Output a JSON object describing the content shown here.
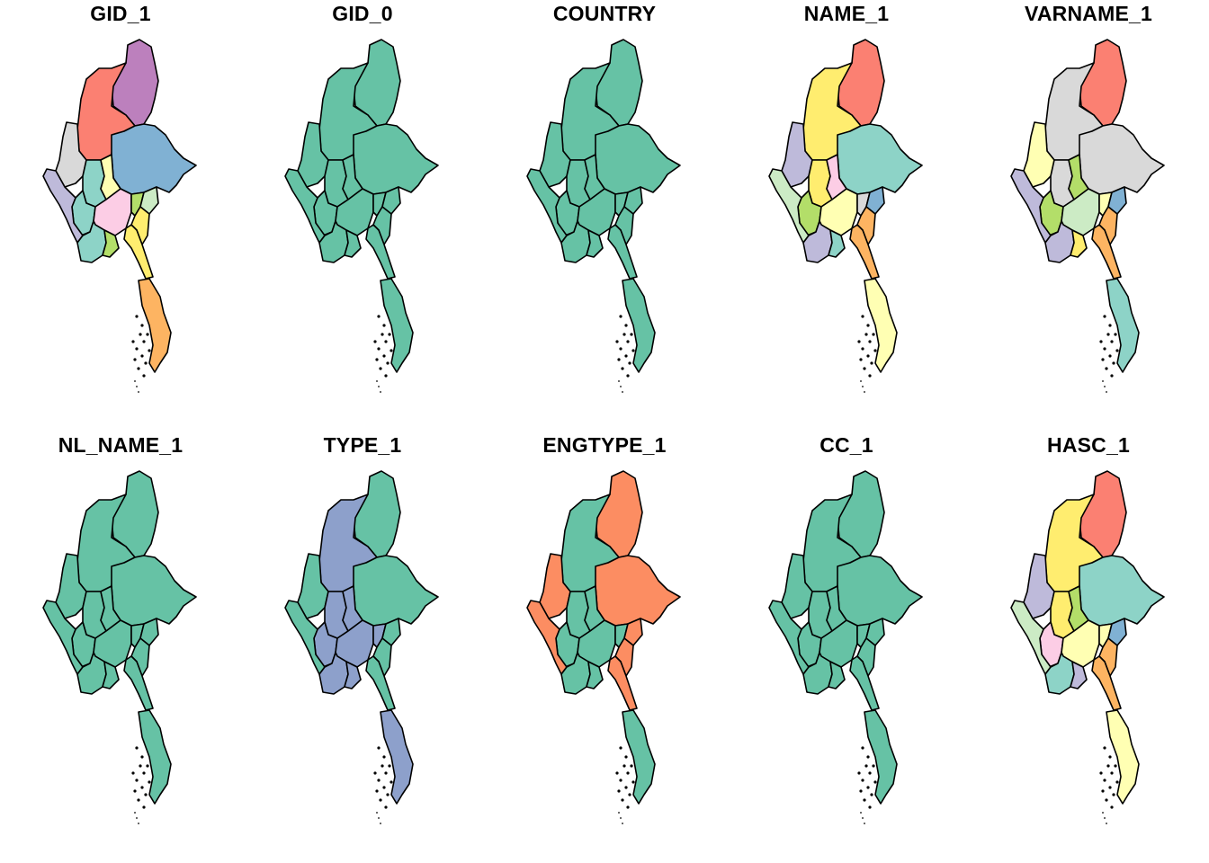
{
  "figure": {
    "panels": [
      {
        "title": "GID_1"
      },
      {
        "title": "GID_0"
      },
      {
        "title": "COUNTRY"
      },
      {
        "title": "NAME_1"
      },
      {
        "title": "VARNAME_1"
      },
      {
        "title": "NL_NAME_1"
      },
      {
        "title": "TYPE_1"
      },
      {
        "title": "ENGTYPE_1"
      },
      {
        "title": "CC_1"
      },
      {
        "title": "HASC_1"
      }
    ]
  },
  "colors": {
    "teal": "#66c2a5",
    "orange": "#fc8d62",
    "blue": "#8da0cb",
    "red": "#fb8072",
    "purple": "#bc80bd",
    "lightblue": "#80b1d3",
    "grey": "#d9d9d9",
    "aqua": "#8dd3c7",
    "yellow": "#ffffb3",
    "lilac": "#bebada",
    "pink": "#fccde5",
    "green": "#b3de69",
    "mint": "#ccebc5",
    "amber": "#fdb462",
    "gold": "#ffed6f"
  },
  "panel_fills": [
    {
      "north": "purple",
      "kachin": "red",
      "chin": "grey",
      "sagaing": "aqua",
      "shan": "lightblue",
      "mandalay": "yellow",
      "magway": "aqua",
      "rakhine": "lilac",
      "bago": "pink",
      "naypyitaw": "green",
      "kayah": "mint",
      "ayeyarwady": "aqua",
      "yangon": "green",
      "kayin": "gold",
      "mon": "gold",
      "tanintharyi": "amber"
    },
    {
      "north": "teal",
      "kachin": "teal",
      "chin": "teal",
      "sagaing": "teal",
      "shan": "teal",
      "mandalay": "teal",
      "magway": "teal",
      "rakhine": "teal",
      "bago": "teal",
      "naypyitaw": "teal",
      "kayah": "teal",
      "ayeyarwady": "teal",
      "yangon": "teal",
      "kayin": "teal",
      "mon": "teal",
      "tanintharyi": "teal"
    },
    {
      "north": "teal",
      "kachin": "teal",
      "chin": "teal",
      "sagaing": "teal",
      "shan": "teal",
      "mandalay": "teal",
      "magway": "teal",
      "rakhine": "teal",
      "bago": "teal",
      "naypyitaw": "teal",
      "kayah": "teal",
      "ayeyarwady": "teal",
      "yangon": "teal",
      "kayin": "teal",
      "mon": "teal",
      "tanintharyi": "teal"
    },
    {
      "north": "red",
      "kachin": "gold",
      "chin": "lilac",
      "sagaing": "gold",
      "shan": "aqua",
      "mandalay": "pink",
      "magway": "green",
      "rakhine": "mint",
      "bago": "yellow",
      "naypyitaw": "grey",
      "kayah": "lightblue",
      "ayeyarwady": "lilac",
      "yangon": "aqua",
      "kayin": "amber",
      "mon": "amber",
      "tanintharyi": "yellow"
    },
    {
      "north": "red",
      "kachin": "grey",
      "chin": "yellow",
      "sagaing": "grey",
      "shan": "grey",
      "mandalay": "green",
      "magway": "green",
      "rakhine": "lilac",
      "bago": "mint",
      "naypyitaw": "yellow",
      "kayah": "lightblue",
      "ayeyarwady": "lilac",
      "yangon": "gold",
      "kayin": "amber",
      "mon": "amber",
      "tanintharyi": "aqua"
    },
    {
      "north": "teal",
      "kachin": "teal",
      "chin": "teal",
      "sagaing": "teal",
      "shan": "teal",
      "mandalay": "teal",
      "magway": "teal",
      "rakhine": "teal",
      "bago": "teal",
      "naypyitaw": "teal",
      "kayah": "teal",
      "ayeyarwady": "teal",
      "yangon": "teal",
      "kayin": "teal",
      "mon": "teal",
      "tanintharyi": "teal"
    },
    {
      "north": "teal",
      "kachin": "blue",
      "chin": "teal",
      "sagaing": "blue",
      "shan": "teal",
      "mandalay": "blue",
      "magway": "blue",
      "rakhine": "teal",
      "bago": "blue",
      "naypyitaw": "blue",
      "kayah": "teal",
      "ayeyarwady": "blue",
      "yangon": "blue",
      "kayin": "teal",
      "mon": "teal",
      "tanintharyi": "blue"
    },
    {
      "north": "orange",
      "kachin": "teal",
      "chin": "orange",
      "sagaing": "teal",
      "shan": "orange",
      "mandalay": "teal",
      "magway": "teal",
      "rakhine": "orange",
      "bago": "teal",
      "naypyitaw": "teal",
      "kayah": "orange",
      "ayeyarwady": "teal",
      "yangon": "teal",
      "kayin": "orange",
      "mon": "orange",
      "tanintharyi": "teal"
    },
    {
      "north": "teal",
      "kachin": "teal",
      "chin": "teal",
      "sagaing": "teal",
      "shan": "teal",
      "mandalay": "teal",
      "magway": "teal",
      "rakhine": "teal",
      "bago": "teal",
      "naypyitaw": "teal",
      "kayah": "teal",
      "ayeyarwady": "teal",
      "yangon": "teal",
      "kayin": "teal",
      "mon": "teal",
      "tanintharyi": "teal"
    },
    {
      "north": "red",
      "kachin": "gold",
      "chin": "lilac",
      "sagaing": "gold",
      "shan": "aqua",
      "mandalay": "green",
      "magway": "pink",
      "rakhine": "mint",
      "bago": "yellow",
      "naypyitaw": "yellow",
      "kayah": "lightblue",
      "ayeyarwady": "aqua",
      "yangon": "lilac",
      "kayin": "amber",
      "mon": "amber",
      "tanintharyi": "yellow"
    }
  ]
}
